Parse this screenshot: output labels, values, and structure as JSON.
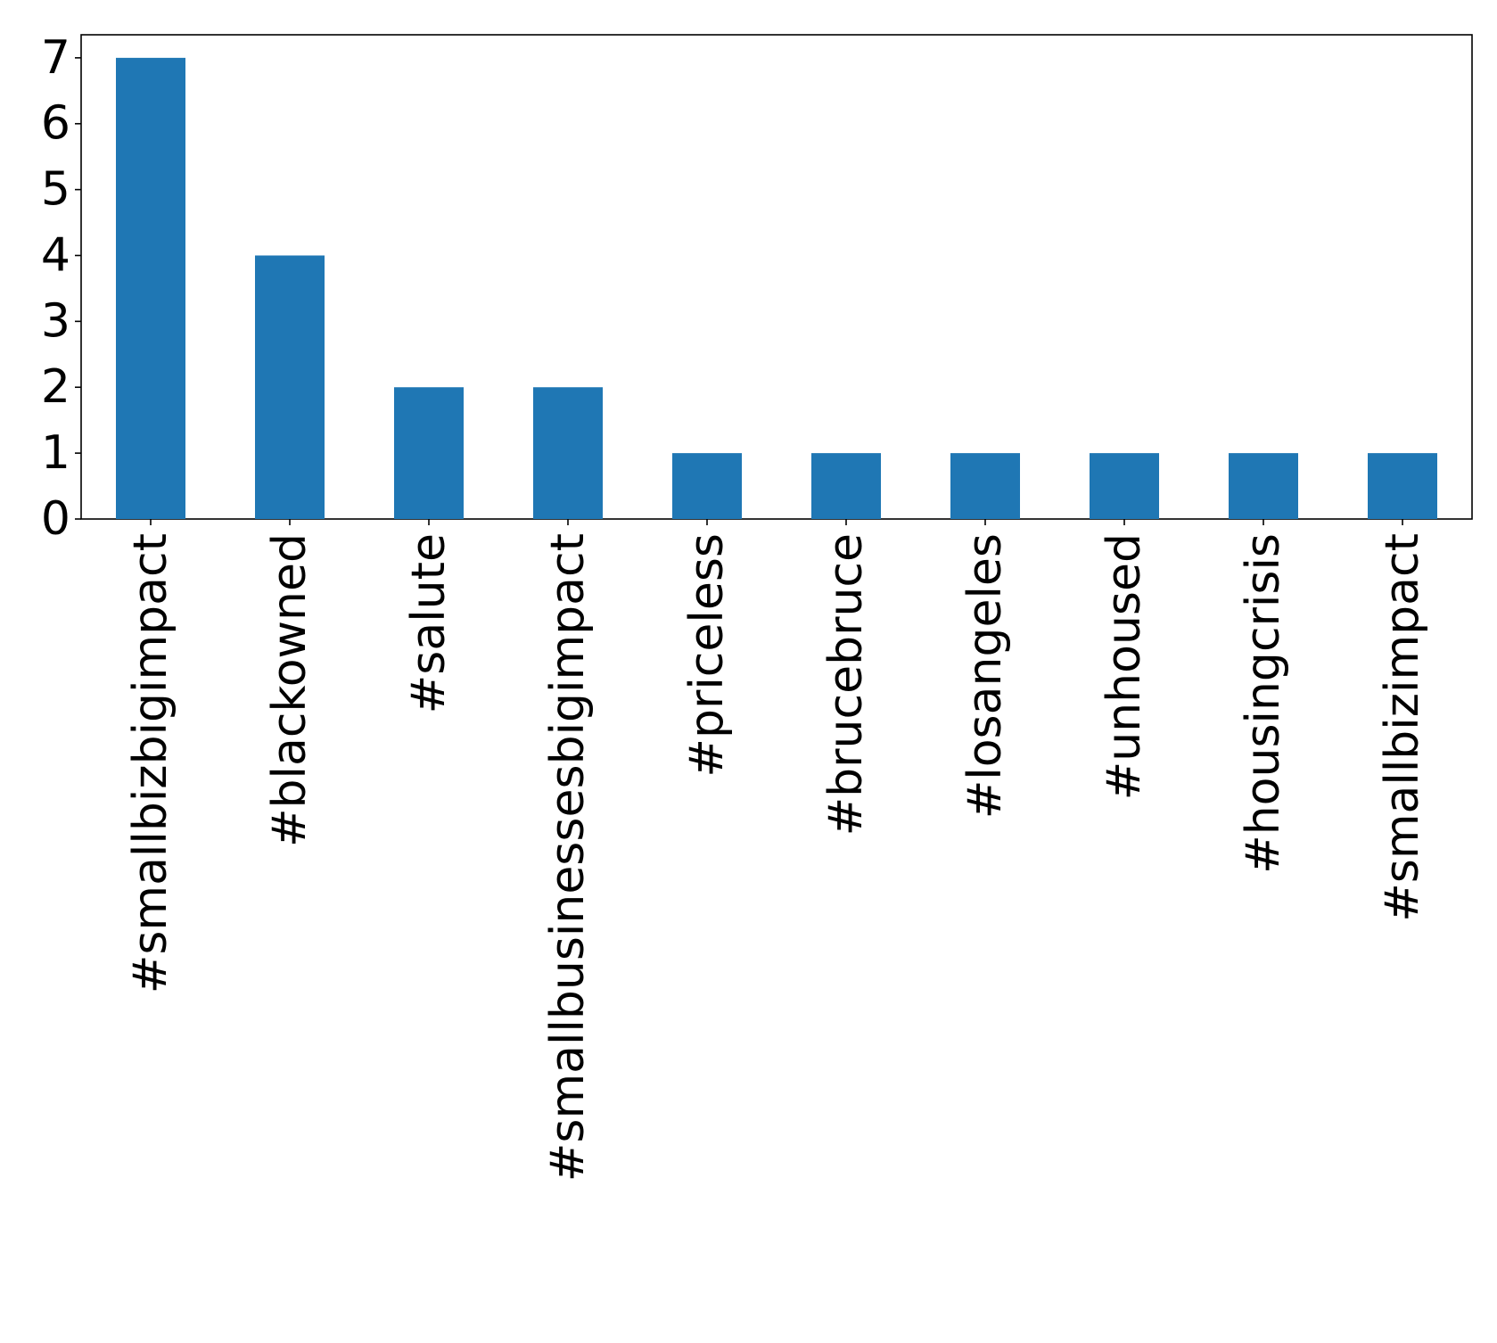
{
  "chart_data": {
    "type": "bar",
    "categories": [
      "#smallbizbigimpact",
      "#blackowned",
      "#salute",
      "#smallbusinessesbigimpact",
      "#priceless",
      "#brucebruce",
      "#losangeles",
      "#unhoused",
      "#housingcrisis",
      "#smallbizimpact"
    ],
    "values": [
      7,
      4,
      2,
      2,
      1,
      1,
      1,
      1,
      1,
      1
    ],
    "ylim": [
      0,
      7.35
    ],
    "yticks": [
      "0",
      "1",
      "2",
      "3",
      "4",
      "5",
      "6",
      "7"
    ],
    "title": "",
    "xlabel": "",
    "ylabel": "",
    "grid": false,
    "legend": false,
    "colors": {
      "bar": "#1f77b4",
      "axis": "#000000",
      "background": "#ffffff"
    }
  }
}
